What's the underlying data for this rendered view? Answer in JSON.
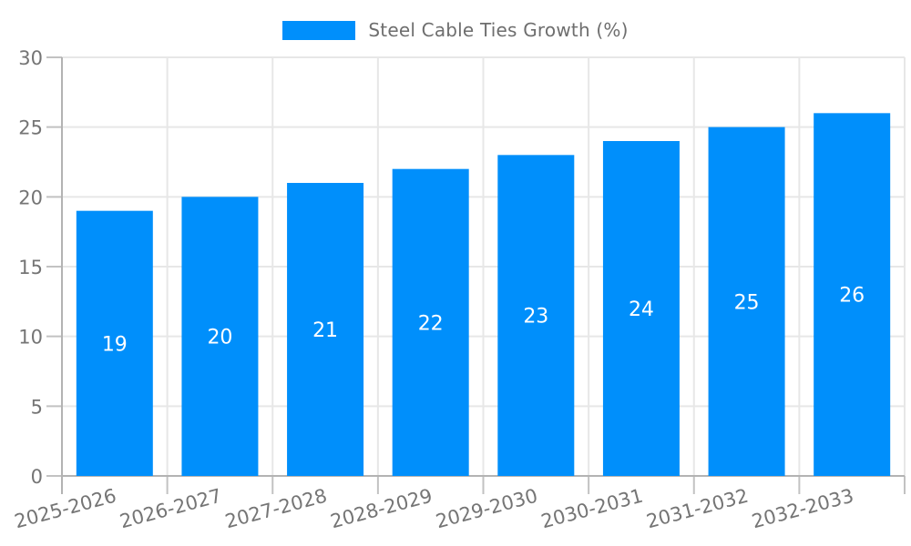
{
  "legend": {
    "label": "Steel Cable Ties Growth (%)",
    "swatch_color": "#008FFB"
  },
  "chart_data": {
    "type": "bar",
    "title": "Steel Cable Ties Growth (%)",
    "categories": [
      "2025-2026",
      "2026-2027",
      "2027-2028",
      "2028-2029",
      "2029-2030",
      "2030-2031",
      "2031-2032",
      "2032-2033"
    ],
    "series": [
      {
        "name": "Steel Cable Ties Growth (%)",
        "color": "#008FFB",
        "values": [
          19,
          20,
          21,
          22,
          23,
          24,
          25,
          26
        ]
      }
    ],
    "xlabel": "",
    "ylabel": "",
    "ylim": [
      0,
      30
    ],
    "yticks": [
      0,
      5,
      10,
      15,
      20,
      25,
      30
    ],
    "grid": true,
    "legend_position": "top",
    "x_label_rotation_deg": -15,
    "value_labels": {
      "show": true,
      "position": "center",
      "color": "#ffffff"
    },
    "colors": {
      "grid": "#e7e7e7",
      "axis_line": "#b3b3b3",
      "tick": "#c2c2c2",
      "axis_label": "#757575",
      "legend_text": "#6e6e6e",
      "background": "#ffffff"
    }
  }
}
